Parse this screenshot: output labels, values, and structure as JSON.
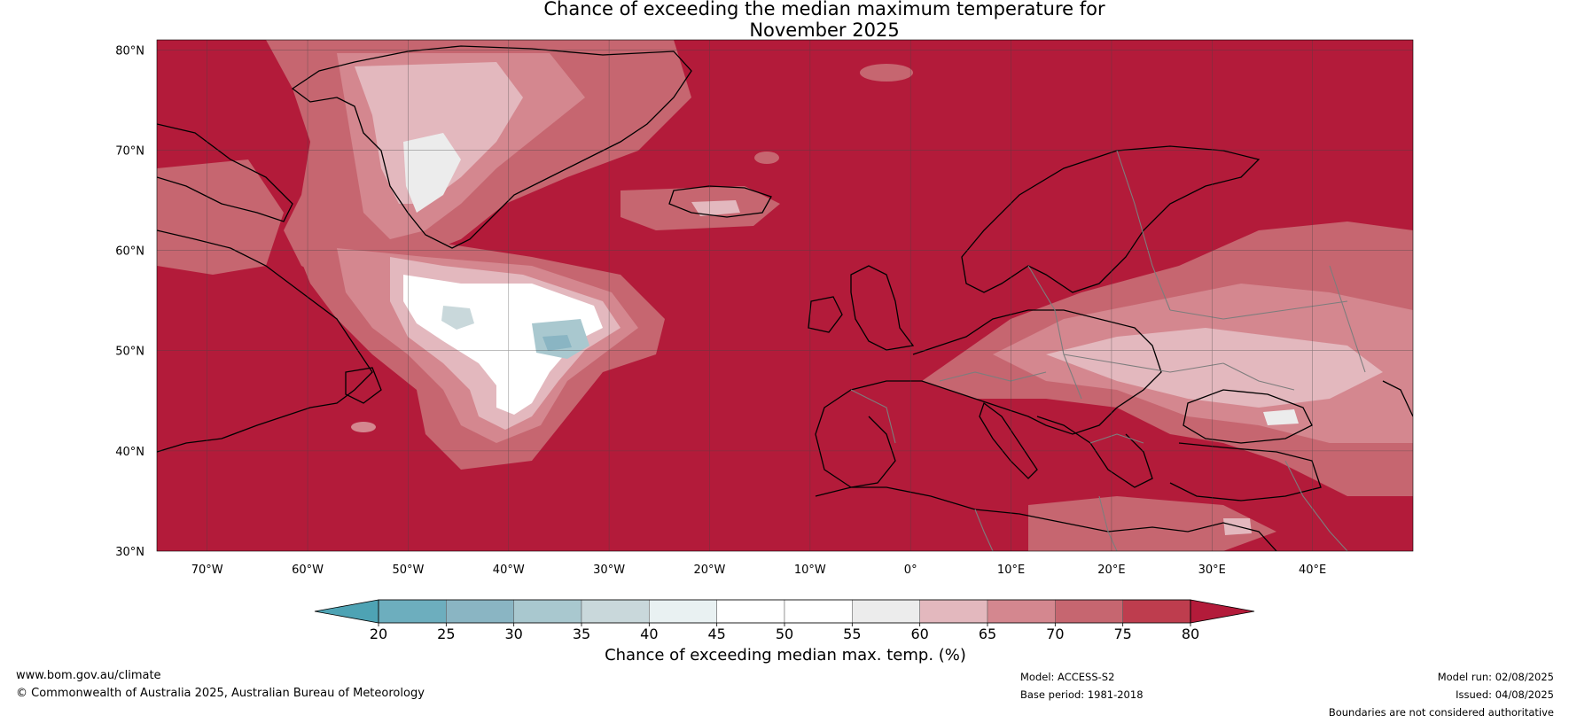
{
  "title": {
    "line1": "Chance of exceeding the median maximum temperature for",
    "line2": "November 2025"
  },
  "map": {
    "lat_labels": [
      "80°N",
      "70°N",
      "60°N",
      "50°N",
      "40°N",
      "30°N"
    ],
    "lon_labels": [
      "70°W",
      "60°W",
      "50°W",
      "40°W",
      "30°W",
      "20°W",
      "10°W",
      "0°",
      "10°E",
      "20°E",
      "30°E",
      "40°E"
    ],
    "background_color": "#b31b3a",
    "coastline_color": "#000000",
    "border_color": "#808080"
  },
  "colorbar": {
    "ticks": [
      "20",
      "25",
      "30",
      "35",
      "40",
      "45",
      "50",
      "55",
      "60",
      "65",
      "70",
      "75",
      "80"
    ],
    "colors": [
      "#4ea3b4",
      "#6daebe",
      "#8ab5c3",
      "#a9c8cf",
      "#c9d8db",
      "#e9f1f2",
      "#ffffff",
      "#ffffff",
      "#ececec",
      "#e3b8be",
      "#d4878f",
      "#c66670",
      "#be3d4e",
      "#b31b3a"
    ],
    "label": "Chance of exceeding median max. temp. (%)"
  },
  "footer": {
    "website": "www.bom.gov.au/climate",
    "copyright": "© Commonwealth of Australia 2025, Australian Bureau of Meteorology",
    "model": "Model: ACCESS-S2",
    "base_period": "Base period: 1981-2018",
    "model_run": "Model run: 02/08/2025",
    "issued": "Issued: 04/08/2025",
    "boundaries_note": "Boundaries are not considered authoritative"
  }
}
